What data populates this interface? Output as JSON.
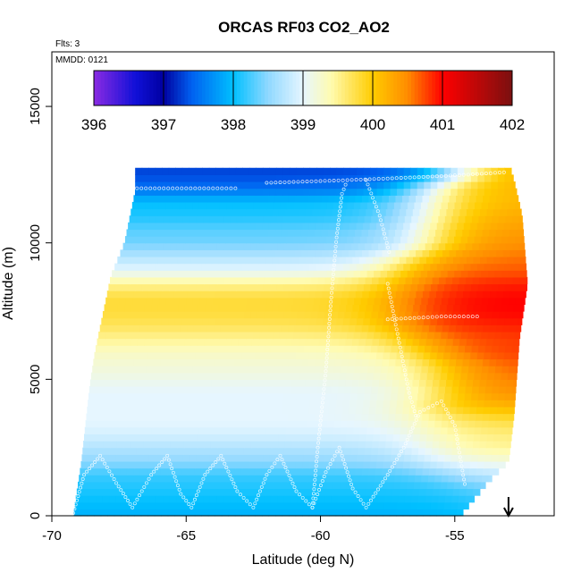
{
  "chart_data": {
    "type": "heatmap",
    "title": "ORCAS RF03 CO2_AO2",
    "annotations": {
      "flights": "Flts: 3",
      "date": "MMDD: 0121"
    },
    "xlabel": "Latitude (deg N)",
    "ylabel": "Altitude (m)",
    "xlim": [
      -70,
      -51.3
    ],
    "ylim": [
      0,
      17000
    ],
    "x_ticks": [
      -70,
      -65,
      -60,
      -55
    ],
    "x_tick_labels": [
      "-70",
      "-65",
      "-60",
      "-55"
    ],
    "y_ticks": [
      0,
      5000,
      10000,
      15000
    ],
    "y_tick_labels": [
      "0",
      "5000",
      "10000",
      "15000"
    ],
    "colorbar": {
      "min": 396,
      "max": 402,
      "ticks": [
        396,
        397,
        398,
        399,
        400,
        401,
        402
      ],
      "tick_labels": [
        "396",
        "397",
        "398",
        "399",
        "400",
        "401",
        "402"
      ],
      "stops": [
        {
          "v": 396.0,
          "c": "#8a2be2"
        },
        {
          "v": 396.6,
          "c": "#1010d8"
        },
        {
          "v": 397.0,
          "c": "#0000a0"
        },
        {
          "v": 397.4,
          "c": "#0060f0"
        },
        {
          "v": 398.0,
          "c": "#00c0ff"
        },
        {
          "v": 398.5,
          "c": "#90d8ff"
        },
        {
          "v": 399.0,
          "c": "#e6f6ff"
        },
        {
          "v": 399.4,
          "c": "#fffbb0"
        },
        {
          "v": 400.0,
          "c": "#ffcc00"
        },
        {
          "v": 400.5,
          "c": "#ff8c00"
        },
        {
          "v": 401.0,
          "c": "#ff0000"
        },
        {
          "v": 402.0,
          "c": "#7a1010"
        }
      ]
    },
    "domain": {
      "alt_min": 0,
      "alt_max": 12600,
      "lat_max": -52.3,
      "left_edge": [
        [
          0,
          -69.2
        ],
        [
          700,
          -69.1
        ],
        [
          2000,
          -68.9
        ],
        [
          4700,
          -68.6
        ],
        [
          6000,
          -68.4
        ],
        [
          8800,
          -67.8
        ],
        [
          10000,
          -67.3
        ],
        [
          11900,
          -66.9
        ],
        [
          12300,
          -66.9
        ]
      ],
      "right_edge": [
        [
          0,
          -54.8
        ],
        [
          1200,
          -53.8
        ],
        [
          2000,
          -53.0
        ],
        [
          3700,
          -52.8
        ],
        [
          6500,
          -52.6
        ],
        [
          8500,
          -52.3
        ],
        [
          11000,
          -52.5
        ],
        [
          12300,
          -52.8
        ],
        [
          12600,
          -52.9
        ]
      ]
    },
    "field": {
      "description": "CO2 (ppm) as a function of altitude band and latitude; north of the transition latitude values blend to the north value",
      "bands": [
        {
          "alt": 0,
          "south": 397.9,
          "north": 398.2,
          "transition": -54.0
        },
        {
          "alt": 500,
          "south": 398.0,
          "north": 398.3,
          "transition": -54.0
        },
        {
          "alt": 1000,
          "south": 398.1,
          "north": 398.5,
          "transition": -54.5
        },
        {
          "alt": 1500,
          "south": 398.2,
          "north": 398.8,
          "transition": -55.5
        },
        {
          "alt": 2000,
          "south": 398.5,
          "north": 399.2,
          "transition": -56.0
        },
        {
          "alt": 2500,
          "south": 398.7,
          "north": 399.5,
          "transition": -56.0
        },
        {
          "alt": 3000,
          "south": 398.9,
          "north": 399.6,
          "transition": -56.0
        },
        {
          "alt": 3500,
          "south": 399.0,
          "north": 399.8,
          "transition": -56.0
        },
        {
          "alt": 4000,
          "south": 399.0,
          "north": 400.2,
          "transition": -56.0
        },
        {
          "alt": 4500,
          "south": 399.0,
          "north": 400.5,
          "transition": -55.5
        },
        {
          "alt": 5000,
          "south": 399.1,
          "north": 400.6,
          "transition": -55.5
        },
        {
          "alt": 5500,
          "south": 399.2,
          "north": 400.7,
          "transition": -55.5
        },
        {
          "alt": 6000,
          "south": 399.3,
          "north": 400.8,
          "transition": -56.0
        },
        {
          "alt": 6500,
          "south": 399.5,
          "north": 400.8,
          "transition": -56.5
        },
        {
          "alt": 7000,
          "south": 399.7,
          "north": 400.9,
          "transition": -57.0
        },
        {
          "alt": 7500,
          "south": 399.8,
          "north": 401.0,
          "transition": -57.0
        },
        {
          "alt": 8000,
          "south": 399.8,
          "north": 401.0,
          "transition": -57.0
        },
        {
          "alt": 8500,
          "south": 399.5,
          "north": 400.9,
          "transition": -57.0
        },
        {
          "alt": 9000,
          "south": 399.0,
          "north": 400.7,
          "transition": -57.0
        },
        {
          "alt": 9500,
          "south": 398.7,
          "north": 400.6,
          "transition": -56.5
        },
        {
          "alt": 10000,
          "south": 398.4,
          "north": 400.5,
          "transition": -56.0
        },
        {
          "alt": 10500,
          "south": 398.3,
          "north": 400.4,
          "transition": -56.0
        },
        {
          "alt": 11000,
          "south": 398.1,
          "north": 400.3,
          "transition": -56.0
        },
        {
          "alt": 11500,
          "south": 398.0,
          "north": 400.2,
          "transition": -56.0
        },
        {
          "alt": 12000,
          "south": 397.5,
          "north": 400.2,
          "transition": -56.0
        },
        {
          "alt": 12500,
          "south": 397.3,
          "north": 400.3,
          "transition": -55.0
        }
      ]
    },
    "flight_track": {
      "description": "sampled observation points shown as small open circles",
      "segments": [
        [
          [
            -69.2,
            100
          ],
          [
            -68.8,
            1500
          ],
          [
            -68.2,
            2200
          ],
          [
            -67.6,
            1200
          ],
          [
            -67.0,
            300
          ],
          [
            -66.3,
            1500
          ],
          [
            -65.7,
            2200
          ],
          [
            -65.2,
            800
          ],
          [
            -64.8,
            300
          ]
        ],
        [
          [
            -64.8,
            300
          ],
          [
            -64.3,
            1500
          ],
          [
            -63.7,
            2200
          ],
          [
            -63.1,
            900
          ],
          [
            -62.5,
            300
          ],
          [
            -62.0,
            1500
          ],
          [
            -61.5,
            2200
          ],
          [
            -60.9,
            900
          ],
          [
            -60.3,
            300
          ]
        ],
        [
          [
            -60.3,
            300
          ],
          [
            -59.8,
            1600
          ],
          [
            -59.3,
            2500
          ],
          [
            -58.8,
            1000
          ],
          [
            -58.3,
            300
          ],
          [
            -57.5,
            1500
          ],
          [
            -56.9,
            2500
          ],
          [
            -56.3,
            3800
          ],
          [
            -55.5,
            4200
          ],
          [
            -55.0,
            3300
          ],
          [
            -54.6,
            1000
          ]
        ],
        [
          [
            -60.3,
            300
          ],
          [
            -60.1,
            2500
          ],
          [
            -59.8,
            5300
          ],
          [
            -59.6,
            8000
          ],
          [
            -59.4,
            10200
          ],
          [
            -59.2,
            11800
          ],
          [
            -59.0,
            12300
          ]
        ],
        [
          [
            -67.0,
            12000
          ],
          [
            -65.0,
            12000
          ],
          [
            -63.0,
            12000
          ]
        ],
        [
          [
            -62.0,
            12200
          ],
          [
            -59.0,
            12300
          ],
          [
            -56.5,
            12400
          ],
          [
            -54.5,
            12500
          ],
          [
            -53.0,
            12600
          ]
        ],
        [
          [
            -57.5,
            7200
          ],
          [
            -55.5,
            7300
          ],
          [
            -54.0,
            7300
          ]
        ],
        [
          [
            -57.5,
            8500
          ],
          [
            -57.3,
            7500
          ],
          [
            -57.0,
            6000
          ],
          [
            -56.7,
            4500
          ],
          [
            -56.4,
            3500
          ]
        ],
        [
          [
            -58.3,
            12300
          ],
          [
            -57.8,
            11000
          ],
          [
            -57.4,
            9500
          ]
        ]
      ]
    },
    "marker": {
      "label": "arrow",
      "latitude": -53.0
    }
  }
}
